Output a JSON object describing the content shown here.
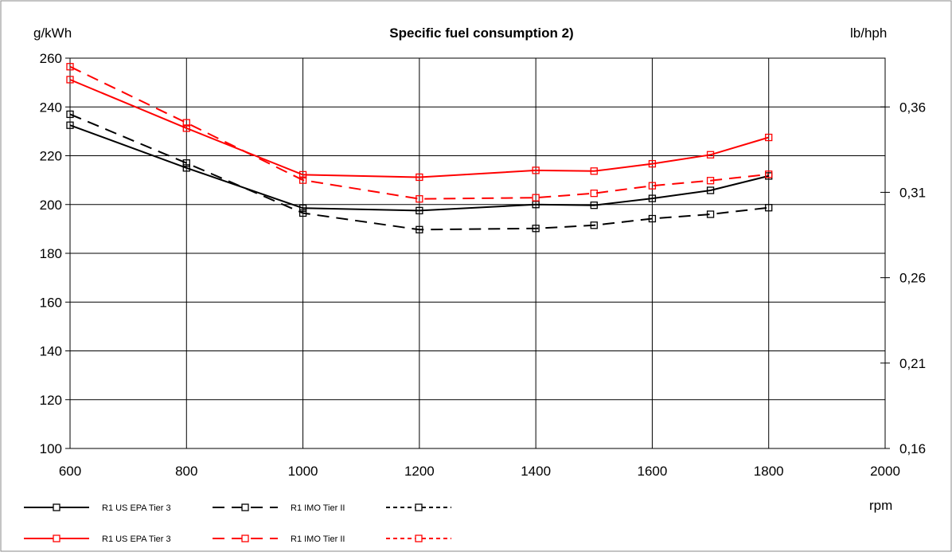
{
  "chart_data": {
    "type": "line",
    "title": "Specific fuel consumption 2)",
    "ylabel_left": "g/kWh",
    "ylabel_right": "lb/hph",
    "xlabel": "rpm",
    "xlim": [
      600,
      2000
    ],
    "ylim": [
      100,
      260
    ],
    "xticks": [
      "600",
      "800",
      "1000",
      "1200",
      "1400",
      "1600",
      "1800",
      "2000"
    ],
    "yticks_left": [
      "100",
      "120",
      "140",
      "160",
      "180",
      "200",
      "220",
      "240",
      "260"
    ],
    "yticks_right": [
      {
        "label": "0,16",
        "value": 0.16
      },
      {
        "label": "0,21",
        "value": 0.21
      },
      {
        "label": "0,26",
        "value": 0.26
      },
      {
        "label": "0,31",
        "value": 0.31
      },
      {
        "label": "0,36",
        "value": 0.36
      }
    ],
    "grid": true,
    "legend_position": "bottom-left",
    "series": [
      {
        "name": "R1 US EPA Tier 3",
        "color": "#000000",
        "dash": "solid",
        "x": [
          600,
          800,
          1000,
          1200,
          1400,
          1500,
          1600,
          1700,
          1800
        ],
        "y": [
          232.5,
          215,
          198.5,
          197.5,
          200,
          199.7,
          202.5,
          205.8,
          211.7
        ]
      },
      {
        "name": "R1 IMO Tier II",
        "color": "#000000",
        "dash": "long",
        "x": [
          600,
          800,
          1000,
          1200,
          1400,
          1500,
          1600,
          1700,
          1800
        ],
        "y": [
          237,
          217,
          196.5,
          189.7,
          190.2,
          191.5,
          194.2,
          196,
          198.7
        ]
      },
      {
        "name": "",
        "color": "#000000",
        "dash": "short",
        "x": [],
        "y": []
      },
      {
        "name": "R1 US EPA Tier 3",
        "color": "#ff0000",
        "dash": "solid",
        "x": [
          600,
          800,
          1000,
          1200,
          1400,
          1500,
          1600,
          1700,
          1800
        ],
        "y": [
          251.2,
          231.3,
          212.2,
          211.2,
          214,
          213.7,
          216.7,
          220.4,
          227.5
        ]
      },
      {
        "name": "R1 IMO Tier II",
        "color": "#ff0000",
        "dash": "long",
        "x": [
          600,
          800,
          1000,
          1200,
          1400,
          1500,
          1600,
          1700,
          1800
        ],
        "y": [
          256.5,
          233.5,
          210,
          202.3,
          202.8,
          204.6,
          207.7,
          209.8,
          212.4
        ]
      },
      {
        "name": "",
        "color": "#ff0000",
        "dash": "short",
        "x": [],
        "y": []
      }
    ]
  }
}
